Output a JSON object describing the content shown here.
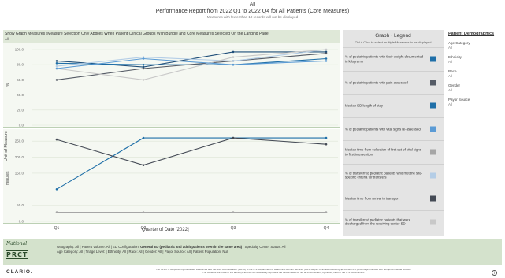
{
  "header": {
    "line1": "All",
    "title": "Performance Report from 2022 Q1 to 2022 Q4 for All Patients (Core Measures)",
    "subtitle": "Measures with fewer than 10 records will not be displayed"
  },
  "show_bar": {
    "label": "Show Graph Measures   (Measure Selection Only Applies When Patient Clinical Groups With  Bundle and Core Measures Selected On the Landing Page)",
    "value": "All"
  },
  "axes": {
    "unit_of_measure": "Unit of Measure",
    "pct_label": "%",
    "minutes_label": "minutes",
    "x_title": "Quarter of Date [2022]"
  },
  "legend": {
    "title": "Graph · Legend",
    "subtitle": "Ctrl + Click to select multiple Measures to be displayed",
    "items": [
      {
        "label": "% of pediatric patients with their weight documented in kilograms",
        "color": "#1f6fa8"
      },
      {
        "label": "% of pediatric patients with pain assessed",
        "color": "#555b66"
      },
      {
        "label": "Median ED length of stay",
        "color": "#1f6fa8"
      },
      {
        "label": "% of pediatric patients with vital signs re-assessed",
        "color": "#5b9bd5"
      },
      {
        "label": "Median time from collection of first set of vital signs to first intervention",
        "color": "#a6a6a6"
      },
      {
        "label": "% of transferred pediatric patients who met the site-specific criteria for transfers",
        "color": "#b4cde6"
      },
      {
        "label": "Median time from arrival to transport",
        "color": "#444a55"
      },
      {
        "label": "% of transferred pediatric patients that were discharged from the receiving center ED",
        "color": "#c8c8c8"
      }
    ]
  },
  "demographics": {
    "title": "Patient Demographics",
    "filters": [
      {
        "label": "Age Category",
        "value": "All"
      },
      {
        "label": "Ethnicity",
        "value": "All"
      },
      {
        "label": "Race",
        "value": "All"
      },
      {
        "label": "Gender",
        "value": "All"
      },
      {
        "label": "Payor Source",
        "value": "All"
      }
    ]
  },
  "footer": {
    "logo_top": "National",
    "logo_main": "PRCT",
    "filters_line1_a": "Geography: All | Patient Volume: All | ED Configuration: ",
    "filters_line1_b": "General ED (pediatric and adult patients seen in the same area)",
    "filters_line1_c": " | Specialty Center Status: All",
    "filters_line2": "Age Category: All | Triage Level: | Ethnicity: All | Race: All | Gender: All | Payor Source: All | Patient Population: Null",
    "brand": "CLARIO.",
    "disclaimer1": "The NPRC is supported by the Health Resources and Services Administration (HRSA) of the U.S. Department of Health and Human Services (HHS) as part of an award totaling $1.5M with 0% percentage financed with nongovernmental sources.",
    "disclaimer2": "The contents are those of the author(s) and do not necessarily represent the official views of, nor an endorsement, by HRSA, HHS or the U.S. Government."
  },
  "chart_data": [
    {
      "type": "line",
      "panel": "percent",
      "ylabel": "%",
      "ylim": [
        0,
        100
      ],
      "yticks": [
        0,
        20,
        40,
        60,
        80,
        100
      ],
      "ytick_labels": [
        "0.0",
        "20.0",
        "40.0",
        "60.0",
        "80.0",
        "100.0"
      ],
      "categories": [
        "Q1",
        "Q2",
        "Q3",
        "Q4"
      ],
      "series": [
        {
          "values": [
            85,
            77,
            97,
            97
          ],
          "color": "#1f4e79"
        },
        {
          "values": [
            82,
            80,
            80,
            88
          ],
          "color": "#1f6fa8"
        },
        {
          "values": [
            60,
            75,
            85,
            95
          ],
          "color": "#555b66"
        },
        {
          "values": [
            78,
            90,
            85,
            100
          ],
          "color": "#b4cde6"
        },
        {
          "values": [
            75,
            60,
            90,
            100
          ],
          "color": "#c8c8c8"
        },
        {
          "values": [
            75,
            88,
            80,
            85
          ],
          "color": "#5b9bd5"
        }
      ]
    },
    {
      "type": "line",
      "panel": "minutes",
      "ylabel": "minutes",
      "ylim": [
        0,
        270
      ],
      "yticks": [
        0,
        50,
        150,
        200,
        250
      ],
      "ytick_labels": [
        "0.0",
        "50.0",
        "150.0",
        "200.0",
        "250.0"
      ],
      "categories": [
        "Q1",
        "Q2",
        "Q3",
        "Q4"
      ],
      "series": [
        {
          "values": [
            100,
            260,
            260,
            260
          ],
          "color": "#1f6fa8"
        },
        {
          "values": [
            255,
            175,
            260,
            240
          ],
          "color": "#444a55"
        },
        {
          "values": [
            28,
            28,
            28,
            28
          ],
          "color": "#a6a6a6"
        }
      ]
    }
  ]
}
